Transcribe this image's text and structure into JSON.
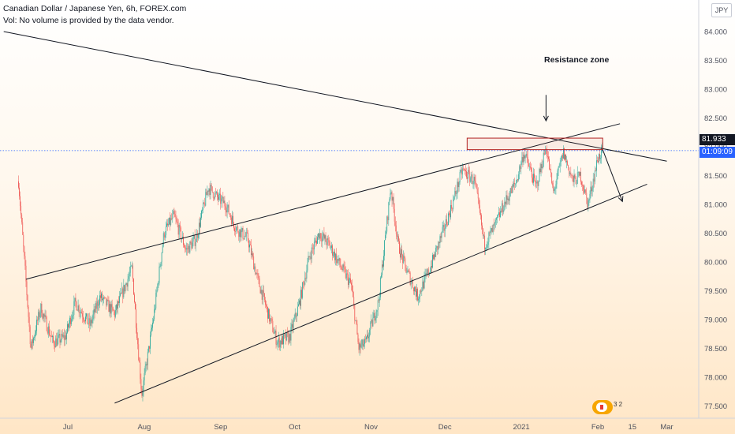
{
  "header": {
    "title": "Canadian Dollar / Japanese Yen, 6h, FOREX.com",
    "volume_note": "Vol: No volume is provided by the data vendor."
  },
  "currency_badge": "JPY",
  "price_tags": {
    "last_price": "81.933",
    "countdown": "01:09:09"
  },
  "annotation": "Resistance zone",
  "logo_badge": "3 2",
  "colors": {
    "up": "#26a69a",
    "down": "#ef5350",
    "line": "#131722",
    "zone": "#b22222",
    "price_line": "#2962ff"
  },
  "chart_data": {
    "type": "line",
    "ylim": [
      77.25,
      84.15
    ],
    "y_ticks": [
      "77.500",
      "78.000",
      "78.500",
      "79.000",
      "79.500",
      "80.000",
      "80.500",
      "81.000",
      "81.500",
      "82.000",
      "82.500",
      "83.000",
      "83.500",
      "84.000"
    ],
    "x_tick_labels": [
      "Jul",
      "Aug",
      "Sep",
      "Oct",
      "Nov",
      "Dec",
      "2021",
      "Feb",
      "15",
      "Mar"
    ],
    "x_ticks": [
      "2020-07-01",
      "2020-08-01",
      "2020-09-01",
      "2020-10-01",
      "2020-11-01",
      "2020-12-01",
      "2021-01-01",
      "2021-02-01",
      "2021-02-15",
      "2021-03-01"
    ],
    "last_price": 81.933,
    "price_series": {
      "name": "",
      "x": [
        "2020-06-11",
        "2020-06-16",
        "2020-06-20",
        "2020-06-25",
        "2020-06-30",
        "2020-07-04",
        "2020-07-10",
        "2020-07-14",
        "2020-07-20",
        "2020-07-27",
        "2020-07-31",
        "2020-08-05",
        "2020-08-09",
        "2020-08-13",
        "2020-08-18",
        "2020-08-22",
        "2020-08-27",
        "2020-08-31",
        "2020-09-03",
        "2020-09-07",
        "2020-09-12",
        "2020-09-16",
        "2020-09-21",
        "2020-09-24",
        "2020-09-29",
        "2020-10-03",
        "2020-10-07",
        "2020-10-11",
        "2020-10-15",
        "2020-10-20",
        "2020-10-24",
        "2020-10-27",
        "2020-10-30",
        "2020-11-04",
        "2020-11-09",
        "2020-11-12",
        "2020-11-15",
        "2020-11-20",
        "2020-11-25",
        "2020-11-30",
        "2020-12-04",
        "2020-12-08",
        "2020-12-13",
        "2020-12-17",
        "2020-12-21",
        "2020-12-25",
        "2020-12-30",
        "2021-01-02",
        "2021-01-07",
        "2021-01-11",
        "2021-01-14",
        "2021-01-18",
        "2021-01-22",
        "2021-01-25",
        "2021-01-28",
        "2021-02-01",
        "2021-02-03"
      ],
      "y": [
        81.4,
        78.5,
        79.2,
        78.6,
        78.7,
        79.3,
        78.9,
        79.4,
        79.1,
        79.9,
        77.7,
        79.1,
        80.5,
        80.8,
        80.2,
        80.4,
        81.3,
        81.1,
        81.0,
        80.6,
        80.4,
        79.7,
        79.0,
        78.6,
        78.7,
        79.3,
        80.1,
        80.5,
        80.3,
        79.9,
        79.6,
        78.5,
        78.6,
        79.3,
        81.3,
        80.3,
        79.9,
        79.4,
        79.9,
        80.5,
        81.0,
        81.6,
        81.4,
        80.3,
        80.6,
        81.0,
        81.4,
        81.9,
        81.3,
        82.0,
        81.2,
        81.9,
        81.4,
        81.5,
        81.0,
        81.8,
        81.93
      ]
    },
    "drawings": [
      {
        "name": "upper-descending-trendline",
        "x": [
          "2020-06-05",
          "2021-03-01"
        ],
        "y": [
          84.0,
          81.75
        ]
      },
      {
        "name": "rising-wedge-upper-line",
        "x": [
          "2020-06-14",
          "2021-02-10"
        ],
        "y": [
          79.7,
          82.4
        ]
      },
      {
        "name": "rising-wedge-lower-line",
        "x": [
          "2020-07-20",
          "2021-02-21"
        ],
        "y": [
          77.55,
          81.35
        ]
      }
    ],
    "resistance_zone": {
      "x": [
        "2020-12-10",
        "2021-02-03"
      ],
      "y": [
        81.95,
        82.15
      ]
    },
    "projection": {
      "x": [
        "2021-02-03",
        "2021-02-11"
      ],
      "y": [
        81.95,
        81.05
      ]
    },
    "resistance_pointer": {
      "x": [
        "2021-01-11",
        "2021-01-11"
      ],
      "y": [
        82.9,
        82.45
      ]
    }
  }
}
